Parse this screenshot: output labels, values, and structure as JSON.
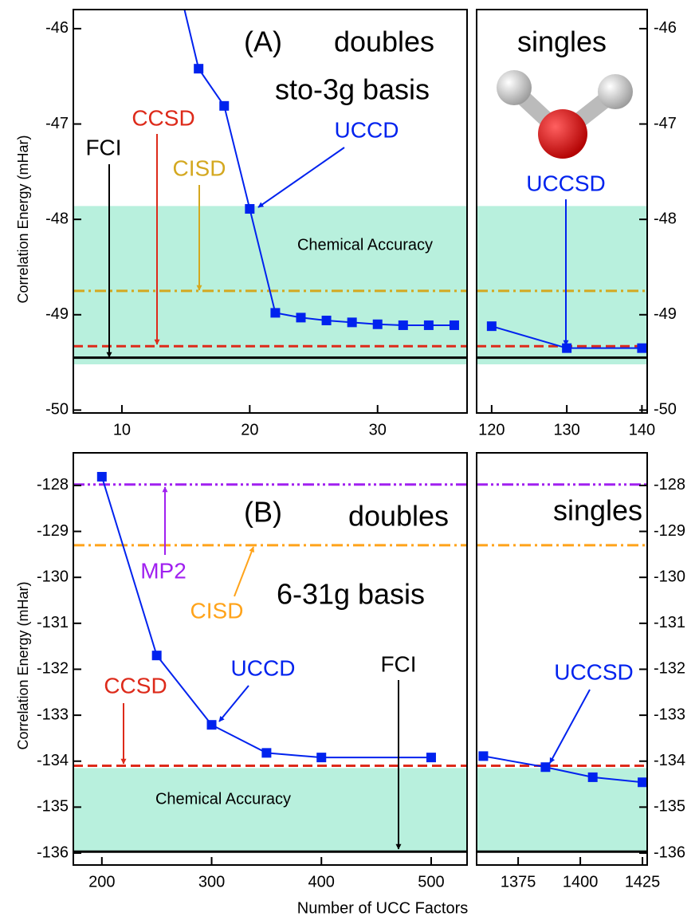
{
  "x_label": "Number of UCC Factors",
  "chart_data": [
    {
      "type": "line",
      "y_label": "Correlation Energy (mHar)",
      "annotations": [
        "(A)",
        "doubles",
        "sto-3g basis"
      ],
      "xlim": [
        6.2,
        37
      ],
      "xticks": [
        10,
        20,
        30
      ],
      "ylim": [
        -50.03,
        -45.8
      ],
      "yticks": [
        -50,
        -49,
        -48,
        -47,
        -46
      ],
      "band": {
        "label": "Chemical Accuracy",
        "range": [
          -49.52,
          -47.86
        ],
        "color": "#b8f0dd"
      },
      "reference_lines": [
        {
          "name": "FCI",
          "value": -49.45,
          "color": "#000000",
          "style": "solid"
        },
        {
          "name": "CCSD",
          "value": -49.33,
          "color": "#dd2a1a",
          "style": "dashed"
        },
        {
          "name": "CISD",
          "value": -48.75,
          "color": "#d4a820",
          "style": "dashdot"
        }
      ],
      "series": [
        {
          "name": "UCCD",
          "color": "#0022ee",
          "x": [
            14,
            16,
            18,
            20,
            22,
            24,
            26,
            28,
            30,
            32,
            34,
            36
          ],
          "values": [
            -45.3,
            -46.42,
            -46.81,
            -47.89,
            -48.98,
            -49.03,
            -49.06,
            -49.08,
            -49.1,
            -49.11,
            -49.11,
            -49.11
          ]
        }
      ]
    },
    {
      "type": "line",
      "annotations": [
        "singles"
      ],
      "xlim": [
        118,
        140.7
      ],
      "xticks": [
        120,
        130,
        140
      ],
      "ylim": [
        -50.03,
        -45.8
      ],
      "yticks": [
        -50,
        -49,
        -48,
        -47,
        -46
      ],
      "band": {
        "range": [
          -49.52,
          -47.86
        ],
        "color": "#b8f0dd"
      },
      "reference_lines": [
        {
          "value": -49.45,
          "color": "#000000",
          "style": "solid"
        },
        {
          "value": -49.33,
          "color": "#dd2a1a",
          "style": "dashed"
        },
        {
          "value": -48.75,
          "color": "#d4a820",
          "style": "dashdot"
        }
      ],
      "series": [
        {
          "name": "UCCSD",
          "color": "#0022ee",
          "x": [
            120,
            130,
            140
          ],
          "values": [
            -49.12,
            -49.35,
            -49.35
          ]
        }
      ]
    },
    {
      "type": "line",
      "y_label": "Correlation Energy (mHar)",
      "annotations": [
        "(B)",
        "doubles",
        "6-31g basis"
      ],
      "xlim": [
        174,
        532.7
      ],
      "xticks": [
        200,
        300,
        400,
        500
      ],
      "ylim": [
        -136.26,
        -127.29
      ],
      "yticks": [
        -136,
        -135,
        -134,
        -133,
        -132,
        -131,
        -130,
        -129,
        -128
      ],
      "band": {
        "label": "Chemical Accuracy",
        "range": [
          -135.97,
          -134.15
        ],
        "color": "#b8f0dd"
      },
      "reference_lines": [
        {
          "name": "FCI",
          "value": -135.97,
          "color": "#000000",
          "style": "solid"
        },
        {
          "name": "CCSD",
          "value": -134.1,
          "color": "#dd2a1a",
          "style": "dashed"
        },
        {
          "name": "CISD",
          "value": -129.3,
          "color": "#ffa31a",
          "style": "dashdot"
        },
        {
          "name": "MP2",
          "value": -127.98,
          "color": "#a020f0",
          "style": "dashdotdot"
        }
      ],
      "series": [
        {
          "name": "UCCD",
          "color": "#0022ee",
          "x": [
            200,
            250,
            300,
            350,
            400,
            500
          ],
          "values": [
            -127.81,
            -131.7,
            -133.21,
            -133.82,
            -133.92,
            -133.92
          ]
        }
      ]
    },
    {
      "type": "line",
      "annotations": [
        "singles"
      ],
      "xlim": [
        1358.3,
        1426.9
      ],
      "xticks": [
        1375,
        1400,
        1425
      ],
      "ylim": [
        -136.26,
        -127.29
      ],
      "yticks": [
        -136,
        -135,
        -134,
        -133,
        -132,
        -131,
        -130,
        -129,
        -128
      ],
      "band": {
        "range": [
          -135.97,
          -134.15
        ],
        "color": "#b8f0dd"
      },
      "reference_lines": [
        {
          "value": -135.97,
          "color": "#000000",
          "style": "solid"
        },
        {
          "value": -134.1,
          "color": "#dd2a1a",
          "style": "dashed"
        },
        {
          "value": -129.3,
          "color": "#ffa31a",
          "style": "dashdot"
        },
        {
          "value": -127.98,
          "color": "#a020f0",
          "style": "dashdotdot"
        }
      ],
      "series": [
        {
          "name": "UCCSD",
          "color": "#0022ee",
          "x": [
            1361,
            1386,
            1405,
            1425
          ],
          "values": [
            -133.89,
            -134.13,
            -134.35,
            -134.46
          ]
        }
      ]
    }
  ]
}
